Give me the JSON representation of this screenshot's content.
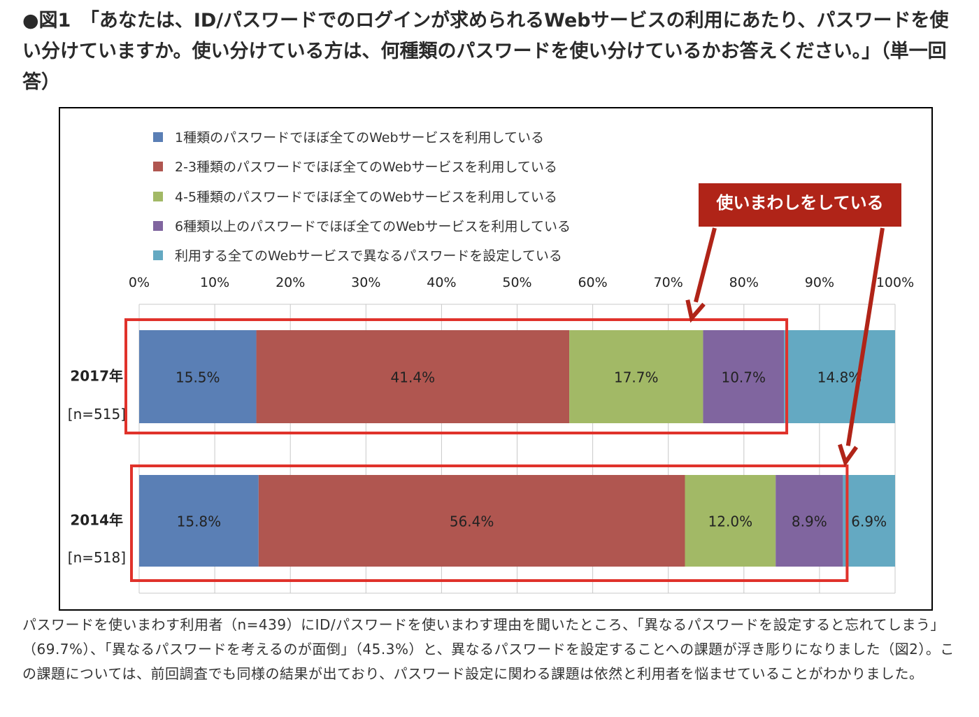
{
  "figure": {
    "title": "●図1　「あなたは、ID/パスワードでのログインが求められるWebサービスの利用にあたり、パスワードを使い分けていますか。使い分けている方は、何種類のパスワードを使い分けているかお答えください。」（単一回答）",
    "caption": "パスワードを使いまわす利用者（n=439）にID/パスワードを使いまわす理由を聞いたところ、「異なるパスワードを設定すると忘れてしまう」（69.7%）、「異なるパスワードを考えるのが面倒」（45.3%）と、異なるパスワードを設定することへの課題が浮き彫りになりました（図2）。この課題については、前回調査でも同様の結果が出ており、パスワード設定に関わる課題は依然と利用者を悩ませていることがわかりました。"
  },
  "callout": {
    "text": "使いまわしをしている",
    "color": "#b02418"
  },
  "chart_data": {
    "type": "bar",
    "orientation": "horizontal",
    "stacked": true,
    "title": "",
    "xlim": [
      0,
      100
    ],
    "x_ticks": [
      "0%",
      "10%",
      "20%",
      "30%",
      "40%",
      "50%",
      "60%",
      "70%",
      "80%",
      "90%",
      "100%"
    ],
    "legend_position": "top-left",
    "grid": true,
    "categories": [
      {
        "label": "2017年",
        "n": "[n=515]"
      },
      {
        "label": "2014年",
        "n": "[n=518]"
      }
    ],
    "series": [
      {
        "name": "1種類のパスワードでほぼ全てのWebサービスを利用している",
        "color": "#5a7fb5",
        "values": [
          15.5,
          15.8
        ],
        "labels": [
          "15.5%",
          "15.8%"
        ]
      },
      {
        "name": "2-3種類のパスワードでほぼ全てのWebサービスを利用している",
        "color": "#b05650",
        "values": [
          41.4,
          56.4
        ],
        "labels": [
          "41.4%",
          "56.4%"
        ]
      },
      {
        "name": "4-5種類のパスワードでほぼ全てのWebサービスを利用している",
        "color": "#a2b966",
        "values": [
          17.7,
          12.0
        ],
        "labels": [
          "17.7%",
          "12.0%"
        ]
      },
      {
        "name": "6種類以上のパスワードでほぼ全てのWebサービスを利用している",
        "color": "#80659f",
        "values": [
          10.7,
          8.9
        ],
        "labels": [
          "10.7%",
          "8.9%"
        ]
      },
      {
        "name": "利用する全てのWebサービスで異なるパスワードを設定している",
        "color": "#64a9c2",
        "values": [
          14.8,
          6.9
        ],
        "labels": [
          "14.8%",
          "6.9%"
        ]
      }
    ]
  }
}
